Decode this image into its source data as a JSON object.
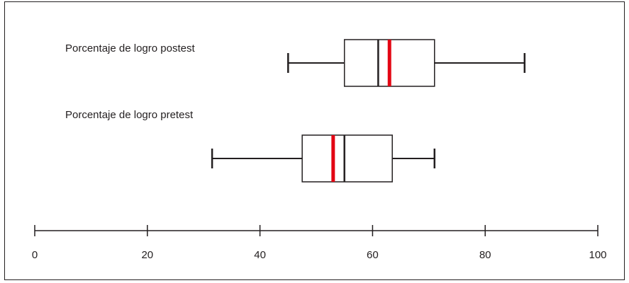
{
  "chart_data": {
    "type": "boxplot",
    "orientation": "horizontal",
    "title": "",
    "xlabel": "",
    "ylabel": "",
    "xlim": [
      0,
      100
    ],
    "x_ticks": [
      0,
      20,
      40,
      60,
      80,
      100
    ],
    "x_tick_labels": [
      "0",
      "20",
      "40",
      "60",
      "80",
      "100"
    ],
    "grid": false,
    "legend": "none",
    "series": [
      {
        "name": "Porcentaje de logro postest",
        "min": 45,
        "q1": 55,
        "median": 61,
        "mean": 63,
        "q3": 71,
        "max": 87
      },
      {
        "name": "Porcentaje de logro pretest",
        "min": 31.5,
        "q1": 47.5,
        "median": 55,
        "mean": 53,
        "q3": 63.5,
        "max": 71
      }
    ],
    "colors": {
      "box_stroke": "#231f20",
      "median_line": "#231f20",
      "mean_line": "#e30613"
    }
  }
}
